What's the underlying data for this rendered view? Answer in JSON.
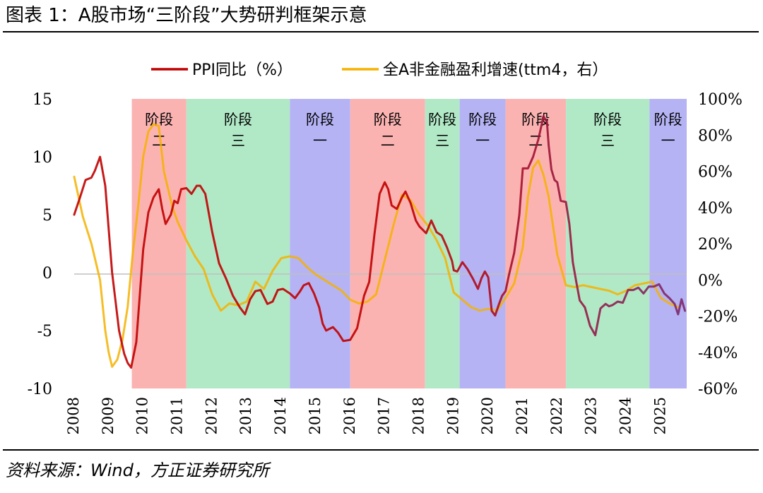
{
  "figure_title": "图表 1：A股市场“三阶段”大势研判框架示意",
  "source_note": "资料来源：Wind，方正证券研究所",
  "colors": {
    "stage_one": "#b5b3f4",
    "stage_two": "#fbb3b2",
    "stage_three": "#b1e9c7",
    "ppi_line_early": "#c00000",
    "ppi_line_late": "#7b2a6e",
    "earnings_line": "#f5b200"
  },
  "chart_data": {
    "type": "line",
    "title": "",
    "xlabel": "",
    "ylabel": "",
    "x_ticks": [
      "2008",
      "2009",
      "2010",
      "2011",
      "2012",
      "2013",
      "2014",
      "2015",
      "2016",
      "2017",
      "2018",
      "2019",
      "2020",
      "2021",
      "2022",
      "2023",
      "2024",
      "2025"
    ],
    "x_range": [
      2008.0,
      2025.75
    ],
    "y_left": {
      "range": [
        -10,
        15
      ],
      "ticks": [
        "15",
        "10",
        "5",
        "0",
        "-5",
        "-10"
      ]
    },
    "y_right": {
      "range": [
        -60,
        100
      ],
      "ticks": [
        "100%",
        "80%",
        "60%",
        "40%",
        "20%",
        "0%",
        "-20%",
        "-40%",
        "-60%"
      ]
    },
    "legend": {
      "position": "top-center",
      "entries": [
        {
          "label": "PPI同比（%）",
          "axis": "left"
        },
        {
          "label": "全A非金融盈利增速(ttm4，右）",
          "axis": "right"
        }
      ]
    },
    "stages": [
      {
        "start": 2009.67,
        "end": 2011.25,
        "type": "two",
        "label_line1": "阶段",
        "label_line2": "二"
      },
      {
        "start": 2011.25,
        "end": 2014.25,
        "type": "three",
        "label_line1": "阶段",
        "label_line2": "三"
      },
      {
        "start": 2014.25,
        "end": 2016.0,
        "type": "one",
        "label_line1": "阶段",
        "label_line2": "一"
      },
      {
        "start": 2016.0,
        "end": 2018.17,
        "type": "two",
        "label_line1": "阶段",
        "label_line2": "二"
      },
      {
        "start": 2018.17,
        "end": 2019.17,
        "type": "three",
        "label_line1": "阶段",
        "label_line2": "三"
      },
      {
        "start": 2019.17,
        "end": 2020.5,
        "type": "one",
        "label_line1": "阶段",
        "label_line2": "一"
      },
      {
        "start": 2020.5,
        "end": 2022.25,
        "type": "two",
        "label_line1": "阶段",
        "label_line2": "二"
      },
      {
        "start": 2022.25,
        "end": 2024.67,
        "type": "three",
        "label_line1": "阶段",
        "label_line2": "三"
      },
      {
        "start": 2024.67,
        "end": 2025.75,
        "type": "one",
        "label_line1": "阶段",
        "label_line2": "一"
      }
    ],
    "series": [
      {
        "name": "PPI同比（%）",
        "axis": "left",
        "x": [
          2008.0,
          2008.17,
          2008.33,
          2008.5,
          2008.6,
          2008.75,
          2008.9,
          2009.1,
          2009.3,
          2009.45,
          2009.55,
          2009.65,
          2009.8,
          2010.0,
          2010.15,
          2010.3,
          2010.45,
          2010.55,
          2010.65,
          2010.8,
          2010.9,
          2011.0,
          2011.1,
          2011.25,
          2011.4,
          2011.55,
          2011.65,
          2011.8,
          2012.0,
          2012.2,
          2012.4,
          2012.6,
          2012.8,
          2012.95,
          2013.1,
          2013.25,
          2013.4,
          2013.6,
          2013.75,
          2013.9,
          2014.05,
          2014.25,
          2014.4,
          2014.55,
          2014.65,
          2014.8,
          2014.95,
          2015.1,
          2015.2,
          2015.3,
          2015.5,
          2015.65,
          2015.8,
          2016.0,
          2016.2,
          2016.4,
          2016.55,
          2016.7,
          2016.85,
          2017.0,
          2017.1,
          2017.2,
          2017.35,
          2017.5,
          2017.6,
          2017.75,
          2017.9,
          2018.0,
          2018.2,
          2018.35,
          2018.5,
          2018.65,
          2018.8,
          2018.95,
          2019.0,
          2019.1,
          2019.25,
          2019.4,
          2019.55,
          2019.7,
          2019.8,
          2019.9,
          2020.0,
          2020.1,
          2020.2,
          2020.3,
          2020.4,
          2020.5,
          2020.6,
          2020.75,
          2020.9,
          2021.0,
          2021.15,
          2021.3,
          2021.45,
          2021.6,
          2021.7,
          2021.75,
          2021.83,
          2021.92,
          2022.0,
          2022.1,
          2022.25,
          2022.35,
          2022.45,
          2022.55,
          2022.65,
          2022.8,
          2022.95,
          2023.1,
          2023.25,
          2023.4,
          2023.5,
          2023.6,
          2023.75,
          2023.9,
          2024.05,
          2024.2,
          2024.35,
          2024.5,
          2024.65,
          2024.8,
          2024.95,
          2025.1,
          2025.25,
          2025.4,
          2025.5,
          2025.6,
          2025.7
        ],
        "values": [
          5.0,
          6.5,
          8.0,
          8.2,
          8.8,
          10.0,
          7.5,
          0.0,
          -5.0,
          -7.0,
          -7.8,
          -8.2,
          -6.0,
          2.0,
          5.2,
          6.5,
          7.2,
          5.5,
          4.2,
          5.0,
          6.2,
          6.0,
          7.2,
          7.3,
          6.8,
          7.5,
          7.5,
          6.8,
          3.5,
          0.8,
          -0.5,
          -2.0,
          -3.0,
          -3.6,
          -2.3,
          -1.6,
          -1.5,
          -2.7,
          -2.5,
          -1.5,
          -1.4,
          -1.8,
          -2.2,
          -1.6,
          -1.1,
          -0.9,
          -1.8,
          -3.0,
          -4.4,
          -5.0,
          -4.7,
          -5.2,
          -5.9,
          -5.8,
          -4.8,
          -2.0,
          -0.8,
          3.3,
          6.8,
          7.8,
          7.2,
          5.8,
          5.5,
          6.5,
          7.0,
          6.0,
          4.5,
          4.0,
          3.4,
          4.5,
          3.5,
          3.2,
          2.2,
          1.0,
          0.2,
          0.1,
          0.9,
          0.3,
          -0.5,
          -1.4,
          -0.5,
          0.1,
          -0.4,
          -3.3,
          -3.7,
          -2.8,
          -2.0,
          -1.6,
          -0.2,
          1.7,
          5.0,
          9.0,
          9.0,
          10.0,
          11.5,
          13.5,
          13.0,
          11.0,
          8.9,
          8.0,
          7.8,
          6.2,
          6.1,
          4.2,
          0.9,
          -0.8,
          -2.4,
          -3.0,
          -4.6,
          -5.4,
          -3.1,
          -2.7,
          -2.9,
          -2.8,
          -2.5,
          -2.6,
          -1.5,
          -1.5,
          -1.3,
          -1.8,
          -1.2,
          -1.2,
          -1.0,
          -1.8,
          -2.2,
          -2.7,
          -3.6,
          -2.3,
          -3.3
        ]
      },
      {
        "name": "全A非金融盈利增速(ttm4，右）",
        "axis": "right",
        "x": [
          2008.0,
          2008.25,
          2008.5,
          2008.75,
          2008.9,
          2009.0,
          2009.1,
          2009.25,
          2009.4,
          2009.55,
          2009.7,
          2009.85,
          2010.0,
          2010.15,
          2010.3,
          2010.45,
          2010.6,
          2010.75,
          2010.85,
          2011.0,
          2011.25,
          2011.5,
          2011.75,
          2012.0,
          2012.25,
          2012.5,
          2012.75,
          2013.0,
          2013.25,
          2013.5,
          2013.75,
          2014.0,
          2014.25,
          2014.5,
          2014.75,
          2015.0,
          2015.25,
          2015.5,
          2015.75,
          2016.0,
          2016.25,
          2016.5,
          2016.75,
          2017.0,
          2017.25,
          2017.5,
          2017.75,
          2018.0,
          2018.25,
          2018.5,
          2018.75,
          2019.0,
          2019.25,
          2019.5,
          2019.75,
          2020.0,
          2020.25,
          2020.5,
          2020.75,
          2021.0,
          2021.15,
          2021.3,
          2021.45,
          2021.6,
          2021.75,
          2022.0,
          2022.25,
          2022.5,
          2022.75,
          2023.0,
          2023.25,
          2023.5,
          2023.75,
          2024.0,
          2024.25,
          2024.5,
          2024.75,
          2025.0,
          2025.25,
          2025.5
        ],
        "values": [
          57,
          35,
          20,
          0,
          -28,
          -40,
          -48,
          -44,
          -33,
          -15,
          15,
          40,
          68,
          82,
          86,
          85,
          60,
          48,
          40,
          32,
          22,
          13,
          6,
          -8,
          -17,
          -13,
          -14,
          -12,
          -1,
          -5,
          5,
          12,
          13,
          12,
          7,
          3,
          0,
          -3,
          -6,
          -11,
          -13,
          -12,
          -8,
          11,
          30,
          47,
          44,
          36,
          30,
          22,
          12,
          -7,
          -11,
          -15,
          -17,
          -16,
          -17,
          -10,
          -2,
          18,
          46,
          62,
          66,
          58,
          46,
          14,
          -3,
          -4,
          -3,
          -4,
          -5,
          -6,
          -8,
          -6,
          -3,
          -2,
          -1,
          -10,
          -13,
          -15
        ]
      }
    ]
  }
}
